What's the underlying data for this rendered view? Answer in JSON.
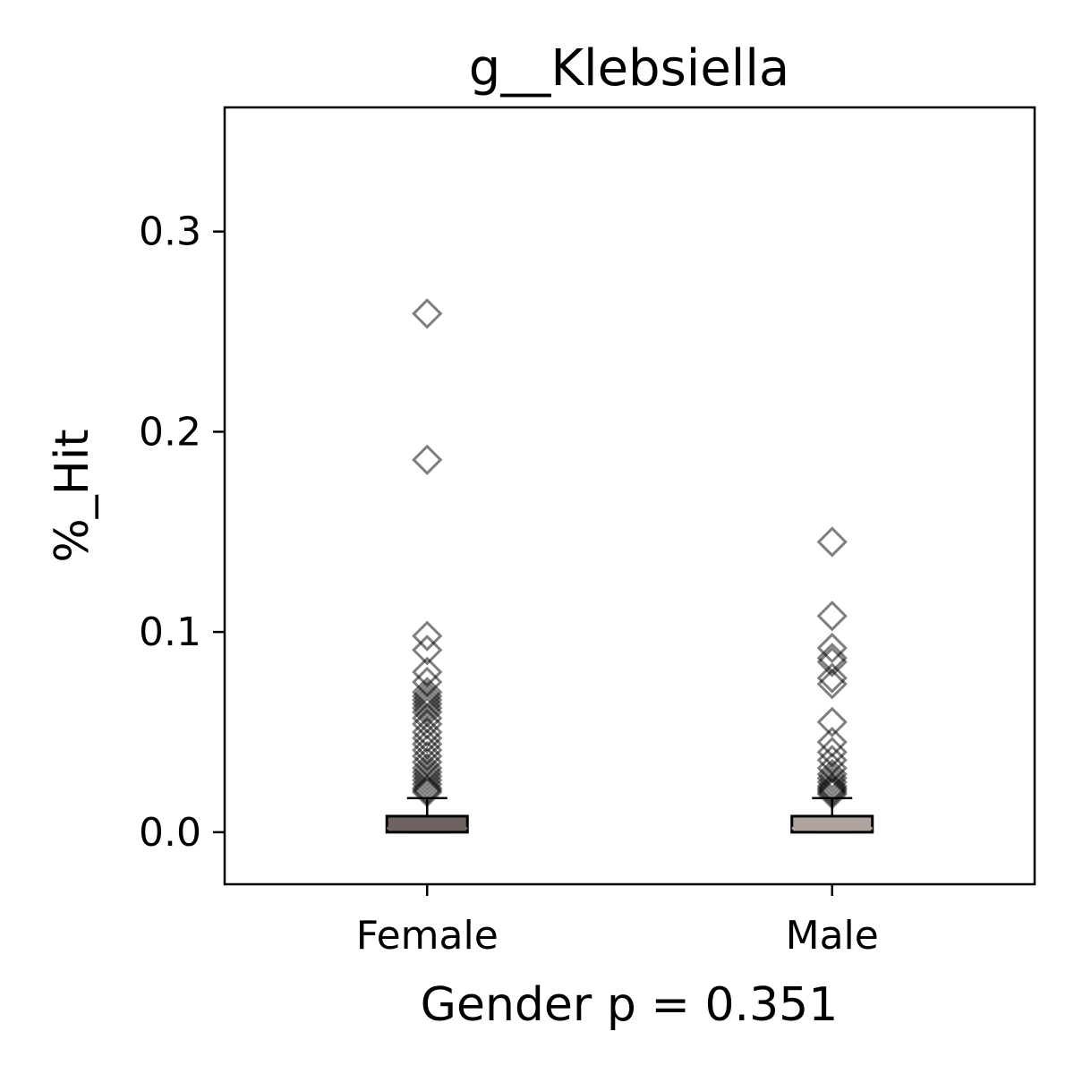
{
  "chart_data": {
    "type": "box",
    "title": "g__Klebsiella",
    "xlabel": "Gender p = 0.351",
    "ylabel": "%_Hit",
    "categories": [
      "Female",
      "Male"
    ],
    "ylim": [
      -0.026,
      0.362
    ],
    "yticks": [
      0.0,
      0.1,
      0.2,
      0.3
    ],
    "ytick_labels": [
      "0.0",
      "0.1",
      "0.2",
      "0.3"
    ],
    "grid": false,
    "outlier_marker": "diamond",
    "boxes": [
      {
        "name": "Female",
        "color": "#6e6360",
        "q1": 0.0,
        "median": 0.002,
        "q3": 0.008,
        "whisker_low": 0.0,
        "whisker_high": 0.017,
        "outliers": [
          0.259,
          0.186,
          0.098,
          0.091,
          0.08,
          0.075,
          0.07,
          0.068,
          0.066,
          0.064,
          0.062,
          0.06,
          0.057,
          0.054,
          0.05,
          0.047,
          0.044,
          0.041,
          0.038,
          0.035,
          0.032,
          0.03,
          0.028,
          0.026,
          0.024,
          0.022,
          0.021,
          0.02
        ]
      },
      {
        "name": "Male",
        "color": "#b0a49e",
        "q1": 0.0,
        "median": 0.002,
        "q3": 0.008,
        "whisker_low": 0.0,
        "whisker_high": 0.017,
        "outliers": [
          0.145,
          0.108,
          0.092,
          0.087,
          0.085,
          0.077,
          0.074,
          0.055,
          0.045,
          0.04,
          0.036,
          0.032,
          0.029,
          0.027,
          0.025,
          0.023,
          0.022,
          0.021,
          0.02,
          0.019
        ]
      }
    ]
  }
}
